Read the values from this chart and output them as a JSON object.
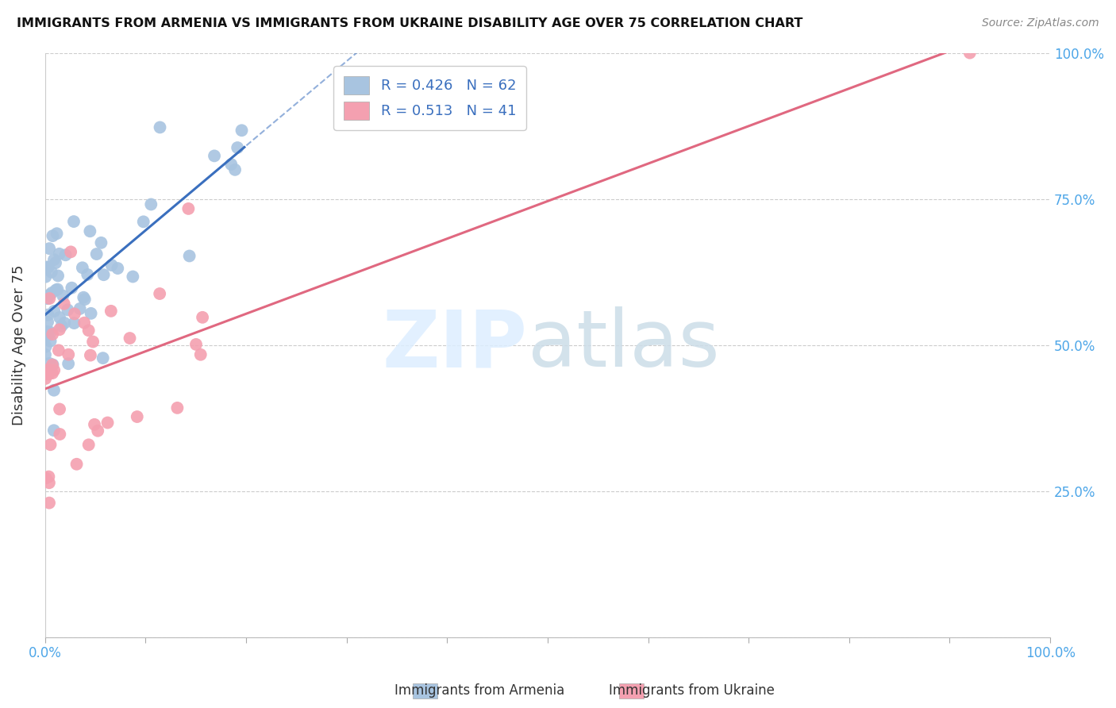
{
  "title": "IMMIGRANTS FROM ARMENIA VS IMMIGRANTS FROM UKRAINE DISABILITY AGE OVER 75 CORRELATION CHART",
  "source": "Source: ZipAtlas.com",
  "ylabel": "Disability Age Over 75",
  "legend1_r": "0.426",
  "legend1_n": "62",
  "legend2_r": "0.513",
  "legend2_n": "41",
  "armenia_color": "#a8c4e0",
  "ukraine_color": "#f4a0b0",
  "armenia_line_color": "#3a6fbe",
  "ukraine_line_color": "#e06880",
  "right_tick_color": "#4da6e8",
  "bottom_tick_color": "#4da6e8"
}
